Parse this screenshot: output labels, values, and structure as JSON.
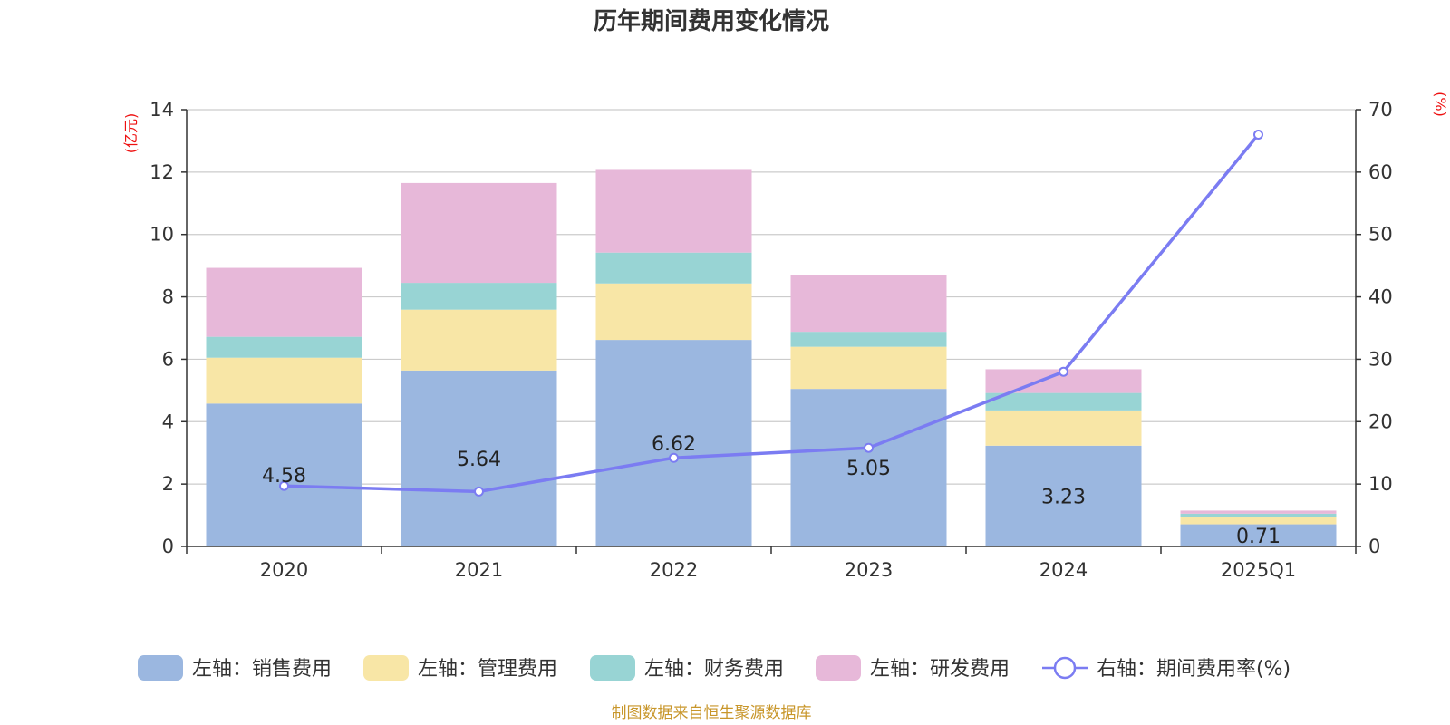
{
  "colors": {
    "sales": "#9bb7e0",
    "admin": "#f8e6a6",
    "finance": "#98d4d4",
    "rd": "#e7b8d9",
    "line": "#7b7cf2",
    "unit": "#ee1111",
    "source": "#c8962a",
    "grid": "#cccccc",
    "axis": "#333333"
  },
  "chart_data": {
    "type": "bar",
    "title": "历年期间费用变化情况",
    "left_unit": "(亿元)",
    "right_unit": "(%)",
    "categories": [
      "2020",
      "2021",
      "2022",
      "2023",
      "2024",
      "2025Q1"
    ],
    "left_axis": {
      "min": 0,
      "max": 14,
      "ticks": [
        0,
        2,
        4,
        6,
        8,
        10,
        12,
        14
      ]
    },
    "right_axis": {
      "min": 0,
      "max": 70,
      "ticks": [
        0,
        10,
        20,
        30,
        40,
        50,
        60,
        70
      ]
    },
    "series": [
      {
        "key": "sales",
        "name": "左轴：销售费用",
        "axis": "left",
        "stack": true,
        "values": [
          4.58,
          5.64,
          6.62,
          5.05,
          3.23,
          0.71
        ],
        "labels": [
          "4.58",
          "5.64",
          "6.62",
          "5.05",
          "3.23",
          "0.71"
        ]
      },
      {
        "key": "admin",
        "name": "左轴：管理费用",
        "axis": "left",
        "stack": true,
        "values": [
          1.47,
          1.95,
          1.81,
          1.35,
          1.13,
          0.22
        ]
      },
      {
        "key": "finance",
        "name": "左轴：财务费用",
        "axis": "left",
        "stack": true,
        "values": [
          0.67,
          0.86,
          0.99,
          0.48,
          0.56,
          0.12
        ]
      },
      {
        "key": "rd",
        "name": "左轴：研发费用",
        "axis": "left",
        "stack": true,
        "values": [
          2.21,
          3.2,
          2.65,
          1.81,
          0.76,
          0.1
        ]
      },
      {
        "key": "line",
        "name": "右轴：期间费用率(%)",
        "axis": "right",
        "type": "line",
        "values": [
          9.7,
          8.8,
          14.2,
          15.8,
          28.0,
          66.0
        ]
      }
    ]
  },
  "source_text": "制图数据来自恒生聚源数据库"
}
